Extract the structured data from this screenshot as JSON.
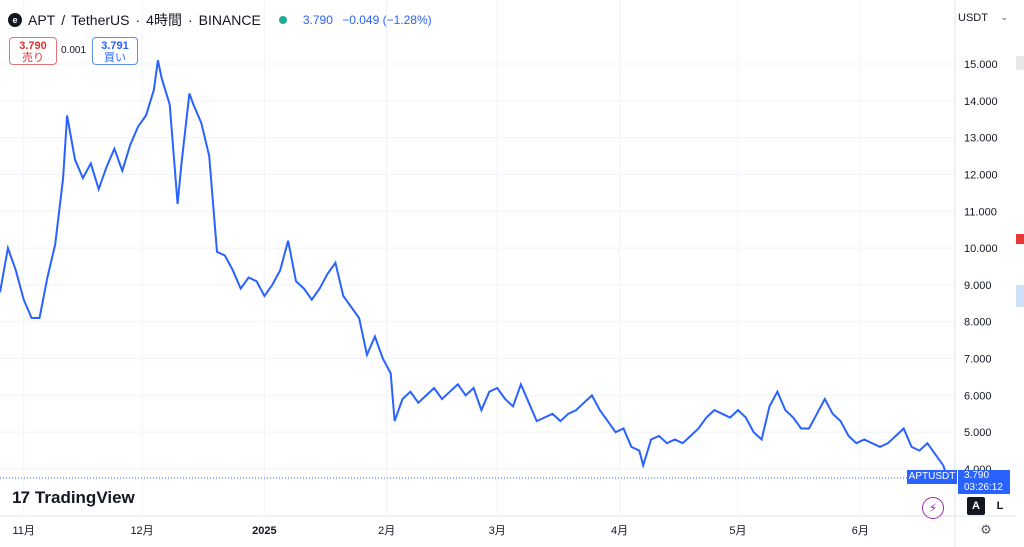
{
  "header": {
    "symbol": "APT",
    "separator": "/",
    "quote_name": "TetherUS",
    "interval": "4時間",
    "exchange": "BINANCE",
    "title_sep": "·",
    "last": "3.790",
    "change": "−0.049",
    "change_pct": "(−1.28%)",
    "logo_glyph": "e"
  },
  "trade": {
    "sell_price": "3.790",
    "sell_label": "売り",
    "spread": "0.001",
    "buy_price": "3.791",
    "buy_label": "買い"
  },
  "currency": {
    "label": "USDT",
    "chevron": "⌄"
  },
  "price_tag": {
    "symbol": "APTUSDT",
    "price": "3.790",
    "countdown": "03:26:12"
  },
  "footer": {
    "brand": "TradingView",
    "brand_mark": "17",
    "auto_label": "A",
    "log_label": "L",
    "flash_icon": "⚡",
    "gear_icon": "⚙"
  },
  "colors": {
    "line": "#2962ff",
    "grid": "#f0f3fa",
    "axis_text": "#131722",
    "up": "#22ab94",
    "down": "#e03030"
  },
  "chart_data": {
    "type": "line",
    "title": "",
    "xlabel": "",
    "ylabel": "",
    "ylim": [
      3.75,
      15.45
    ],
    "y_ticks": [
      4,
      5,
      6,
      7,
      8,
      9,
      10,
      11,
      12,
      13,
      14,
      15
    ],
    "y_tick_labels": [
      "4.000",
      "5.000",
      "6.000",
      "7.000",
      "8.000",
      "9.000",
      "10.000",
      "11.000",
      "12.000",
      "13.000",
      "14.000",
      "15.000"
    ],
    "x_ticks": [
      {
        "label": "11月",
        "date": "2024-11-01"
      },
      {
        "label": "12月",
        "date": "2024-12-01"
      },
      {
        "label": "2025",
        "date": "2025-01-01"
      },
      {
        "label": "2月",
        "date": "2025-02-01"
      },
      {
        "label": "3月",
        "date": "2025-03-01"
      },
      {
        "label": "4月",
        "date": "2025-04-01"
      },
      {
        "label": "5月",
        "date": "2025-05-01"
      },
      {
        "label": "6月",
        "date": "2025-06-01"
      }
    ],
    "xlim": [
      "2024-10-26",
      "2025-06-25"
    ],
    "grid": true,
    "series": [
      {
        "values": [
          [
            "2024-10-26",
            8.8
          ],
          [
            "2024-10-28",
            10.0
          ],
          [
            "2024-10-30",
            9.4
          ],
          [
            "2024-11-01",
            8.6
          ],
          [
            "2024-11-03",
            8.1
          ],
          [
            "2024-11-05",
            8.1
          ],
          [
            "2024-11-07",
            9.2
          ],
          [
            "2024-11-09",
            10.1
          ],
          [
            "2024-11-11",
            11.9
          ],
          [
            "2024-11-12",
            13.6
          ],
          [
            "2024-11-14",
            12.4
          ],
          [
            "2024-11-16",
            11.9
          ],
          [
            "2024-11-18",
            12.3
          ],
          [
            "2024-11-20",
            11.6
          ],
          [
            "2024-11-22",
            12.2
          ],
          [
            "2024-11-24",
            12.7
          ],
          [
            "2024-11-26",
            12.1
          ],
          [
            "2024-11-28",
            12.8
          ],
          [
            "2024-11-30",
            13.3
          ],
          [
            "2024-12-02",
            13.6
          ],
          [
            "2024-12-04",
            14.3
          ],
          [
            "2024-12-05",
            15.1
          ],
          [
            "2024-12-06",
            14.6
          ],
          [
            "2024-12-08",
            13.9
          ],
          [
            "2024-12-10",
            11.2
          ],
          [
            "2024-12-11",
            12.3
          ],
          [
            "2024-12-13",
            14.2
          ],
          [
            "2024-12-14",
            13.9
          ],
          [
            "2024-12-16",
            13.4
          ],
          [
            "2024-12-18",
            12.5
          ],
          [
            "2024-12-20",
            9.9
          ],
          [
            "2024-12-22",
            9.8
          ],
          [
            "2024-12-24",
            9.4
          ],
          [
            "2024-12-26",
            8.9
          ],
          [
            "2024-12-28",
            9.2
          ],
          [
            "2024-12-30",
            9.1
          ],
          [
            "2025-01-01",
            8.7
          ],
          [
            "2025-01-03",
            9.0
          ],
          [
            "2025-01-05",
            9.4
          ],
          [
            "2025-01-07",
            10.2
          ],
          [
            "2025-01-09",
            9.1
          ],
          [
            "2025-01-11",
            8.9
          ],
          [
            "2025-01-13",
            8.6
          ],
          [
            "2025-01-15",
            8.9
          ],
          [
            "2025-01-17",
            9.3
          ],
          [
            "2025-01-19",
            9.6
          ],
          [
            "2025-01-21",
            8.7
          ],
          [
            "2025-01-23",
            8.4
          ],
          [
            "2025-01-25",
            8.1
          ],
          [
            "2025-01-27",
            7.1
          ],
          [
            "2025-01-29",
            7.6
          ],
          [
            "2025-01-31",
            7.0
          ],
          [
            "2025-02-02",
            6.6
          ],
          [
            "2025-02-03",
            5.3
          ],
          [
            "2025-02-05",
            5.9
          ],
          [
            "2025-02-07",
            6.1
          ],
          [
            "2025-02-09",
            5.8
          ],
          [
            "2025-02-11",
            6.0
          ],
          [
            "2025-02-13",
            6.2
          ],
          [
            "2025-02-15",
            5.9
          ],
          [
            "2025-02-17",
            6.1
          ],
          [
            "2025-02-19",
            6.3
          ],
          [
            "2025-02-21",
            6.0
          ],
          [
            "2025-02-23",
            6.2
          ],
          [
            "2025-02-25",
            5.6
          ],
          [
            "2025-02-27",
            6.1
          ],
          [
            "2025-03-01",
            6.2
          ],
          [
            "2025-03-03",
            5.9
          ],
          [
            "2025-03-05",
            5.7
          ],
          [
            "2025-03-07",
            6.3
          ],
          [
            "2025-03-09",
            5.8
          ],
          [
            "2025-03-11",
            5.3
          ],
          [
            "2025-03-13",
            5.4
          ],
          [
            "2025-03-15",
            5.5
          ],
          [
            "2025-03-17",
            5.3
          ],
          [
            "2025-03-19",
            5.5
          ],
          [
            "2025-03-21",
            5.6
          ],
          [
            "2025-03-23",
            5.8
          ],
          [
            "2025-03-25",
            6.0
          ],
          [
            "2025-03-27",
            5.6
          ],
          [
            "2025-03-29",
            5.3
          ],
          [
            "2025-03-31",
            5.0
          ],
          [
            "2025-04-02",
            5.1
          ],
          [
            "2025-04-04",
            4.6
          ],
          [
            "2025-04-06",
            4.5
          ],
          [
            "2025-04-07",
            4.1
          ],
          [
            "2025-04-09",
            4.8
          ],
          [
            "2025-04-11",
            4.9
          ],
          [
            "2025-04-13",
            4.7
          ],
          [
            "2025-04-15",
            4.8
          ],
          [
            "2025-04-17",
            4.7
          ],
          [
            "2025-04-19",
            4.9
          ],
          [
            "2025-04-21",
            5.1
          ],
          [
            "2025-04-23",
            5.4
          ],
          [
            "2025-04-25",
            5.6
          ],
          [
            "2025-04-27",
            5.5
          ],
          [
            "2025-04-29",
            5.4
          ],
          [
            "2025-05-01",
            5.6
          ],
          [
            "2025-05-03",
            5.4
          ],
          [
            "2025-05-05",
            5.0
          ],
          [
            "2025-05-07",
            4.8
          ],
          [
            "2025-05-09",
            5.7
          ],
          [
            "2025-05-11",
            6.1
          ],
          [
            "2025-05-13",
            5.6
          ],
          [
            "2025-05-15",
            5.4
          ],
          [
            "2025-05-17",
            5.1
          ],
          [
            "2025-05-19",
            5.1
          ],
          [
            "2025-05-21",
            5.5
          ],
          [
            "2025-05-23",
            5.9
          ],
          [
            "2025-05-25",
            5.5
          ],
          [
            "2025-05-27",
            5.3
          ],
          [
            "2025-05-29",
            4.9
          ],
          [
            "2025-05-31",
            4.7
          ],
          [
            "2025-06-02",
            4.8
          ],
          [
            "2025-06-04",
            4.7
          ],
          [
            "2025-06-06",
            4.6
          ],
          [
            "2025-06-08",
            4.7
          ],
          [
            "2025-06-10",
            4.9
          ],
          [
            "2025-06-12",
            5.1
          ],
          [
            "2025-06-14",
            4.6
          ],
          [
            "2025-06-16",
            4.5
          ],
          [
            "2025-06-18",
            4.7
          ],
          [
            "2025-06-20",
            4.4
          ],
          [
            "2025-06-22",
            4.1
          ],
          [
            "2025-06-23",
            3.79
          ]
        ]
      }
    ],
    "last_value": 3.79
  }
}
